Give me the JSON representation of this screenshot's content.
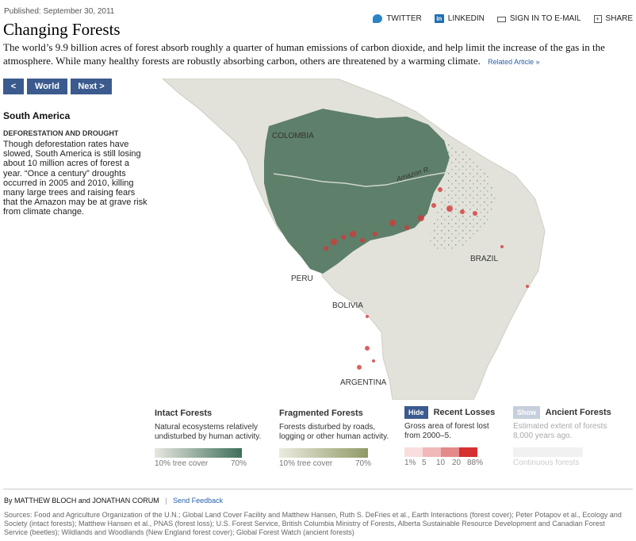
{
  "header": {
    "published": "Published: September 30, 2011",
    "title": "Changing Forests",
    "intro": "The world’s 9.9 billion acres of forest absorb roughly a quarter of human emissions of carbon dioxide, and help limit the increase of the gas in the atmosphere. While many healthy forests are robustly absorbing carbon, others are threatened by a warming climate.",
    "related_link": "Related Article »"
  },
  "share": {
    "twitter": "TWITTER",
    "linkedin": "LINKEDIN",
    "email": "SIGN IN TO E-MAIL",
    "share": "SHARE"
  },
  "nav": {
    "prev": "<",
    "world": "World",
    "next": "Next >"
  },
  "sidebar": {
    "region": "South America",
    "subhead": "DEFORESTATION AND DROUGHT",
    "body": "Though deforestation rates have slowed, South America is still losing about 10 million acres of forest a year. “Once a century” droughts occurred in 2005 and 2010, killing many large trees and raising fears that the Amazon may be at grave risk from climate change."
  },
  "map": {
    "labels": {
      "colombia": "COLOMBIA",
      "amazon": "Amazon R.",
      "brazil": "BRAZIL",
      "peru": "PERU",
      "bolivia": "BOLIVIA",
      "argentina": "ARGENTINA"
    }
  },
  "legend": {
    "intact": {
      "title": "Intact Forests",
      "desc": "Natural ecosystems relatively undisturbed by human activity.",
      "min": "10% tree cover",
      "max": "70%",
      "color": "#4f6e5c"
    },
    "fragmented": {
      "title": "Fragmented Forests",
      "desc": "Forests disturbed by roads, logging or other human activity.",
      "min": "10% tree cover",
      "max": "70%",
      "color": "#8b9a6a"
    },
    "losses": {
      "button": "Hide",
      "title": "Recent Losses",
      "desc": "Gross area of forest lost from 2000–5.",
      "ticks": [
        "1%",
        "5",
        "10",
        "20",
        "88%"
      ],
      "colors": [
        "#f8dede",
        "#f1b8b8",
        "#e48a8a",
        "#d63030"
      ]
    },
    "ancient": {
      "button": "Show",
      "title": "Ancient Forests",
      "desc": "Estimated extent of forests 8,000 years ago.",
      "tick": "Continuous forests"
    }
  },
  "credits": {
    "byline": "By MATTHEW BLOCH and JONATHAN CORUM",
    "separator": "|",
    "feedback": "Send Feedback"
  },
  "sources": "Sources: Food and Agriculture Organization of the U.N.; Global Land Cover Facility and Matthew Hansen, Ruth S. DeFries et al., Earth Interactions (forest cover); Peter Potapov et al., Ecology and Society (intact forests); Matthew Hansen et al., PNAS (forest loss); U.S. Forest Service, British Columbia Ministry of Forests, Alberta Sustainable Resource Development and Canadian Forest Service (beetles); Wildlands and Woodlands (New England forest cover); Global Forest Watch (ancient forests)"
}
